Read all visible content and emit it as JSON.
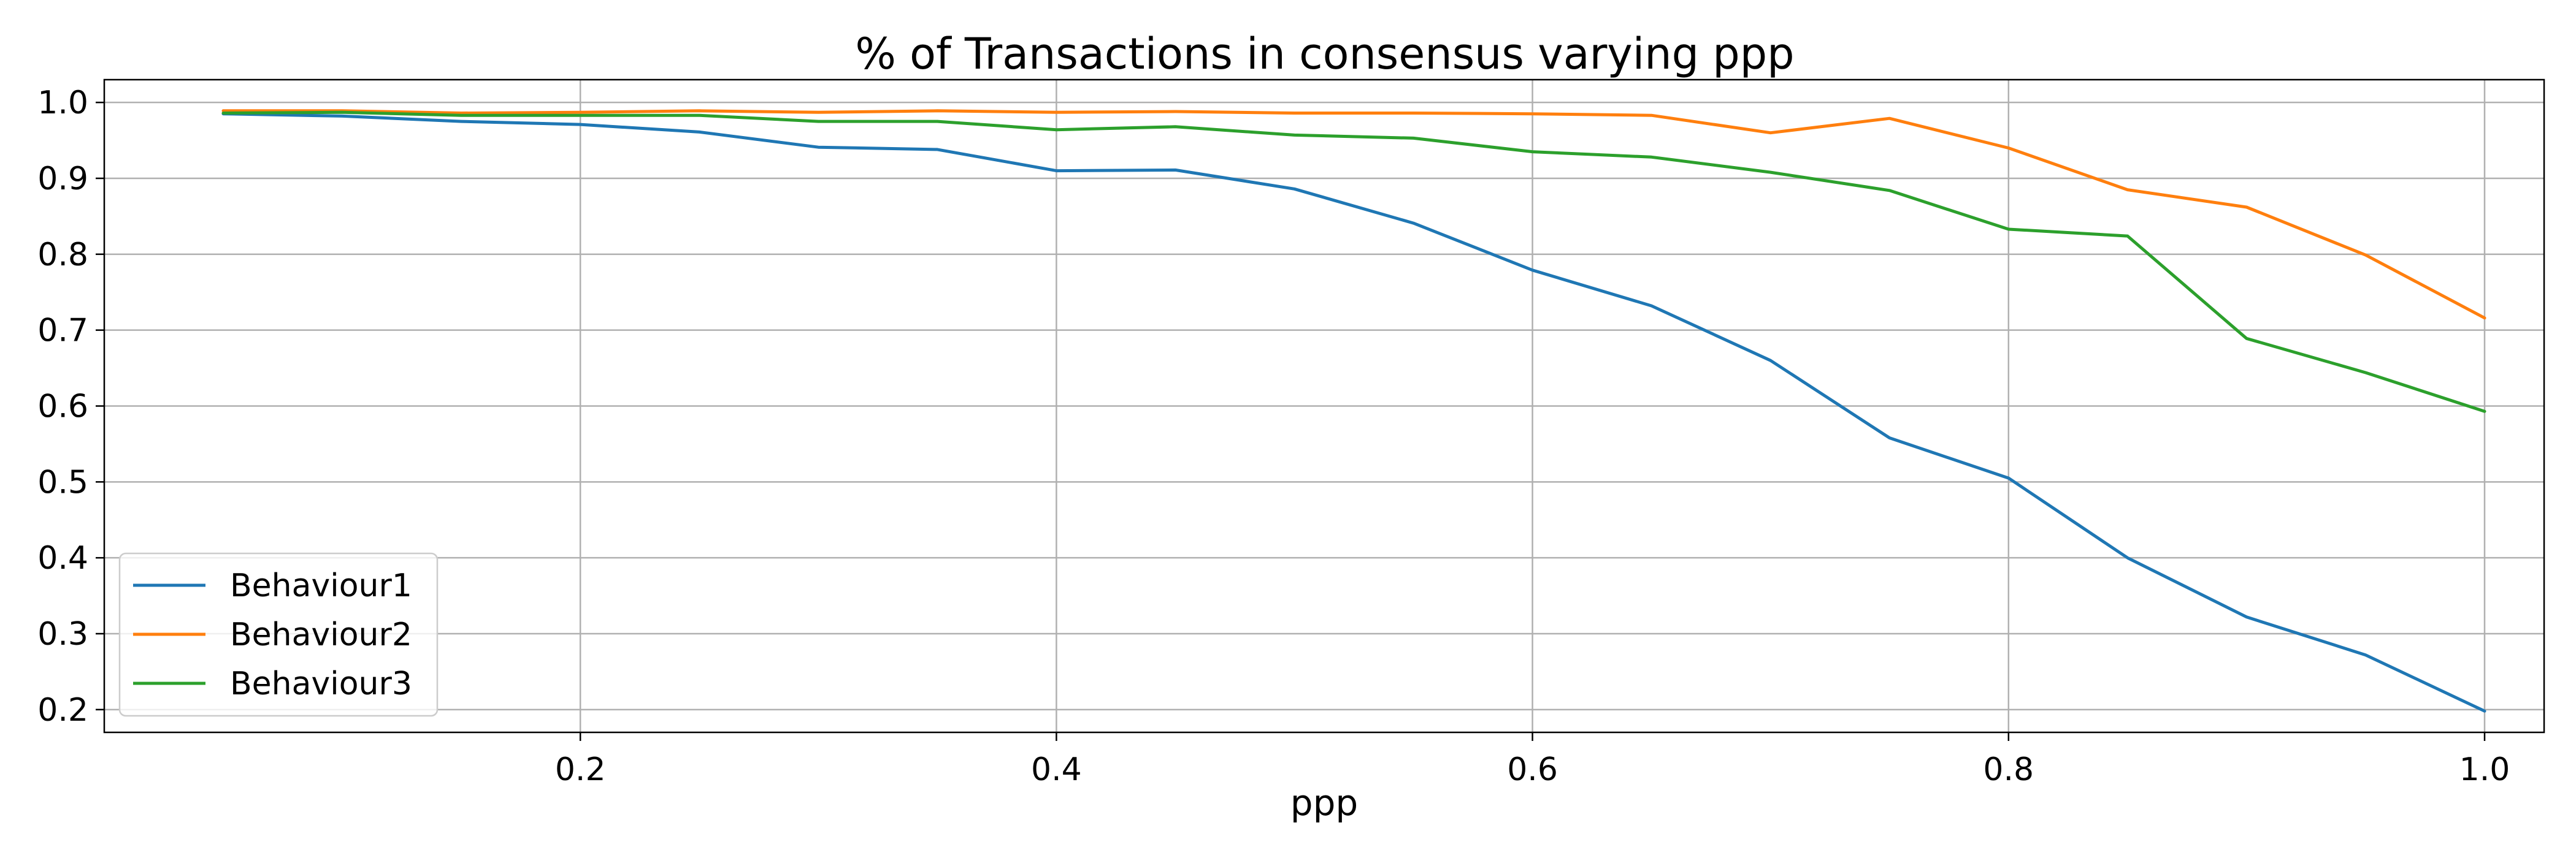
{
  "chart_data": {
    "type": "line",
    "title": "% of Transactions in consensus varying ppp",
    "xlabel": "ppp",
    "ylabel": "",
    "xlim": [
      0.0,
      1.025
    ],
    "ylim": [
      0.17,
      1.03
    ],
    "xticks": [
      0.2,
      0.4,
      0.6,
      0.8,
      1.0
    ],
    "xtick_labels": [
      "0.2",
      "0.4",
      "0.6",
      "0.8",
      "1.0"
    ],
    "yticks": [
      0.2,
      0.3,
      0.4,
      0.5,
      0.6,
      0.7,
      0.8,
      0.9,
      1.0
    ],
    "ytick_labels": [
      "0.2",
      "0.3",
      "0.4",
      "0.5",
      "0.6",
      "0.7",
      "0.8",
      "0.9",
      "1.0"
    ],
    "grid": true,
    "legend_position": "lower-left",
    "x": [
      0.05,
      0.1,
      0.15,
      0.2,
      0.25,
      0.3,
      0.35,
      0.4,
      0.45,
      0.5,
      0.55,
      0.6,
      0.65,
      0.7,
      0.75,
      0.8,
      0.85,
      0.9,
      0.95,
      1.0
    ],
    "series": [
      {
        "name": "Behaviour1",
        "color": "#1f77b4",
        "values": [
          0.985,
          0.982,
          0.975,
          0.971,
          0.961,
          0.941,
          0.938,
          0.91,
          0.911,
          0.886,
          0.841,
          0.779,
          0.732,
          0.66,
          0.558,
          0.505,
          0.4,
          0.322,
          0.272,
          0.198
        ]
      },
      {
        "name": "Behaviour2",
        "color": "#ff7f0e",
        "values": [
          0.989,
          0.989,
          0.986,
          0.987,
          0.989,
          0.987,
          0.989,
          0.987,
          0.988,
          0.986,
          0.986,
          0.985,
          0.983,
          0.96,
          0.979,
          0.94,
          0.885,
          0.862,
          0.799,
          0.716
        ]
      },
      {
        "name": "Behaviour3",
        "color": "#2ca02c",
        "values": [
          0.986,
          0.987,
          0.983,
          0.983,
          0.983,
          0.975,
          0.975,
          0.964,
          0.968,
          0.957,
          0.953,
          0.935,
          0.928,
          0.908,
          0.884,
          0.833,
          0.824,
          0.689,
          0.644,
          0.593
        ]
      }
    ]
  }
}
